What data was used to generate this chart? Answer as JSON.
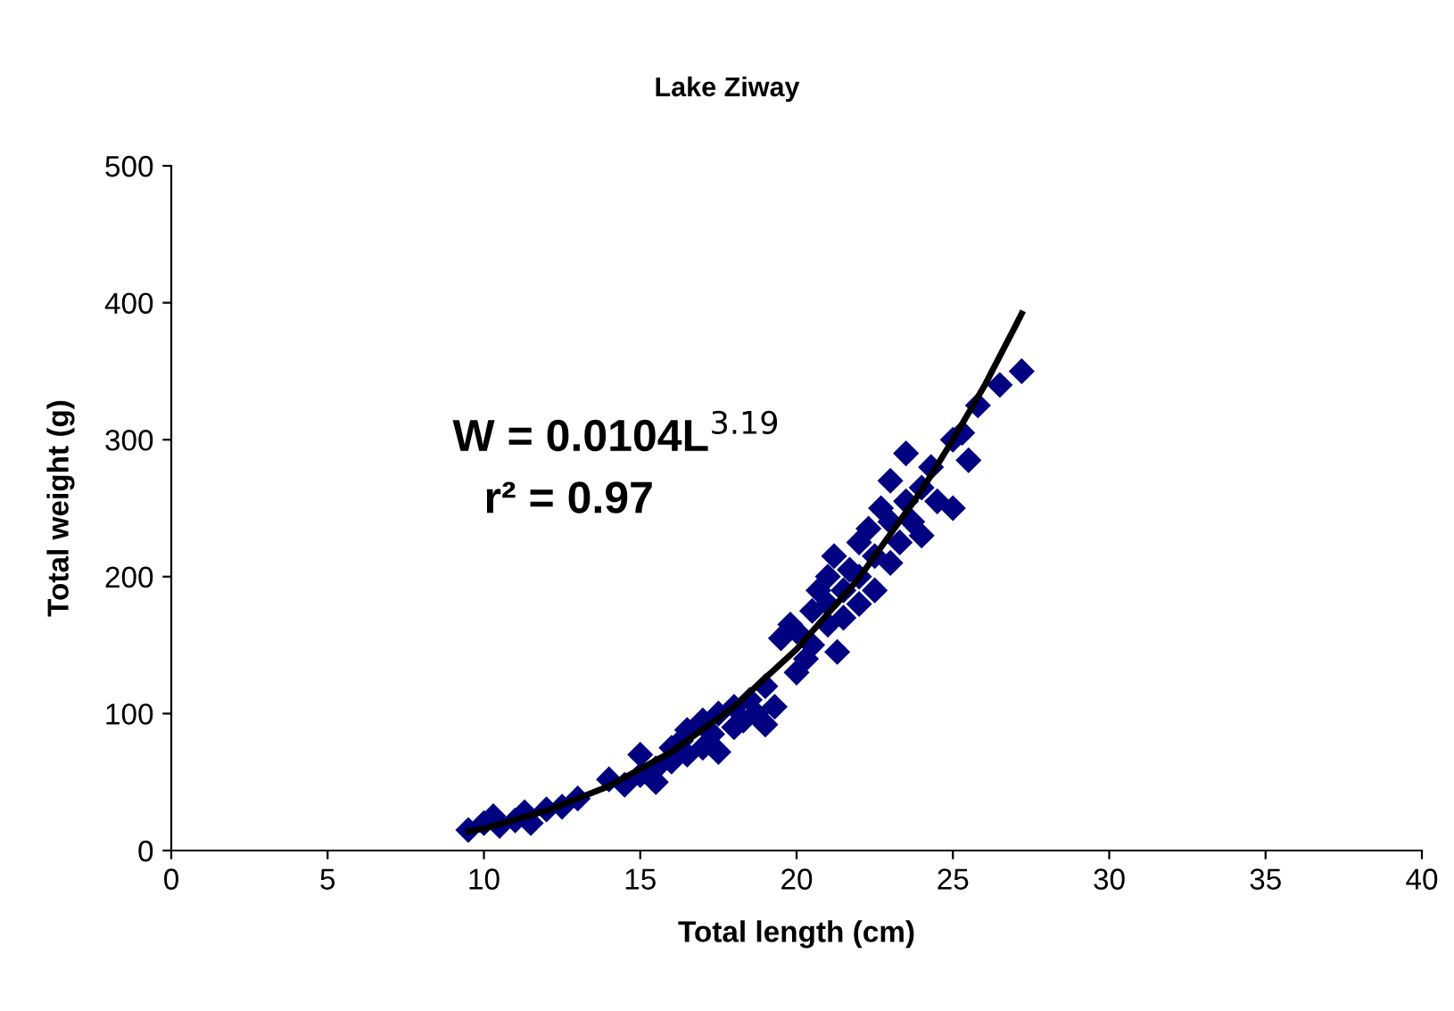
{
  "chart_data": {
    "type": "scatter",
    "title": "Lake Ziway",
    "xlabel": "Total length (cm)",
    "ylabel": "Total weight (g)",
    "xlim": [
      0,
      40
    ],
    "xticks": [
      0,
      5,
      10,
      15,
      20,
      25,
      30,
      35,
      40
    ],
    "ylim": [
      0,
      500
    ],
    "yticks": [
      0,
      100,
      200,
      300,
      400,
      500
    ],
    "grid": false,
    "marker": "diamond",
    "annotations": [
      "W = 0.0104L$^{3.19}$",
      "r² = 0.97"
    ],
    "series": [
      {
        "color": "#000080",
        "x": [
          9.5,
          10,
          10.3,
          10.5,
          11,
          11.3,
          11.5,
          12,
          12.5,
          13,
          14,
          14.5,
          15,
          15,
          15.5,
          15.5,
          16,
          16,
          16.3,
          16.5,
          16.5,
          17,
          17,
          17.3,
          17.5,
          17.5,
          18,
          18,
          18.3,
          18.5,
          18.7,
          19,
          19,
          19.3,
          19.5,
          19.8,
          20,
          20,
          20.3,
          20.5,
          20.5,
          20.7,
          21,
          21,
          21,
          21.2,
          21.3,
          21.5,
          21.5,
          21.7,
          22,
          22,
          22,
          22.3,
          22.5,
          22.5,
          22.7,
          23,
          23,
          23,
          23.3,
          23.5,
          23.5,
          23.7,
          24,
          24,
          24.3,
          24.5,
          25,
          25,
          25.3,
          25.5,
          25.8,
          26.5,
          27.2
        ],
        "values": [
          15,
          20,
          25,
          18,
          22,
          28,
          20,
          30,
          32,
          38,
          52,
          48,
          55,
          70,
          60,
          50,
          65,
          75,
          80,
          70,
          88,
          75,
          95,
          85,
          100,
          72,
          90,
          105,
          95,
          110,
          100,
          92,
          120,
          105,
          155,
          165,
          130,
          160,
          140,
          175,
          150,
          190,
          165,
          200,
          180,
          215,
          145,
          190,
          170,
          205,
          200,
          225,
          180,
          235,
          215,
          190,
          250,
          240,
          210,
          270,
          225,
          255,
          290,
          240,
          265,
          230,
          280,
          255,
          300,
          250,
          305,
          285,
          325,
          340,
          350
        ]
      },
      {
        "type": "line",
        "color": "#000000",
        "marker": "none",
        "x": [
          9.5,
          10,
          12,
          14,
          16,
          18,
          20,
          22,
          24,
          25,
          26,
          27,
          27.2
        ],
        "values": [
          14,
          16,
          29,
          47,
          72,
          105,
          147,
          199,
          263,
          300,
          339,
          383,
          392
        ]
      }
    ]
  }
}
